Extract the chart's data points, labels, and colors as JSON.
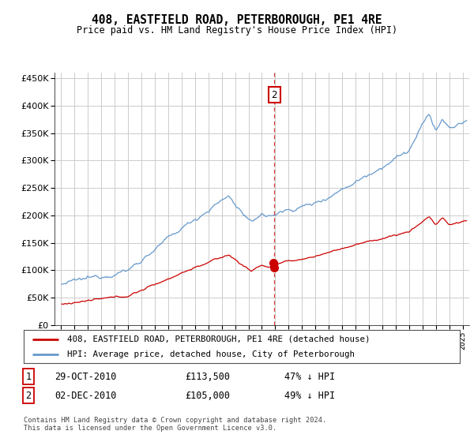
{
  "title": "408, EASTFIELD ROAD, PETERBOROUGH, PE1 4RE",
  "subtitle": "Price paid vs. HM Land Registry's House Price Index (HPI)",
  "legend_line1": "408, EASTFIELD ROAD, PETERBOROUGH, PE1 4RE (detached house)",
  "legend_line2": "HPI: Average price, detached house, City of Peterborough",
  "transaction1_date": "29-OCT-2010",
  "transaction1_price": "£113,500",
  "transaction1_note": "47% ↓ HPI",
  "transaction2_date": "02-DEC-2010",
  "transaction2_price": "£105,000",
  "transaction2_note": "49% ↓ HPI",
  "footer": "Contains HM Land Registry data © Crown copyright and database right 2024.\nThis data is licensed under the Open Government Licence v3.0.",
  "hpi_color": "#6699cc",
  "price_color": "#cc0000",
  "vline_color": "#cc0000",
  "background_color": "#ffffff",
  "grid_color": "#cccccc",
  "annotation_box_color": "#cc0000",
  "ylim": [
    0,
    460000
  ],
  "yticks": [
    0,
    50000,
    100000,
    150000,
    200000,
    250000,
    300000,
    350000,
    400000,
    450000
  ],
  "transaction1_decimal": 2010.83,
  "transaction2_decimal": 2010.92,
  "transaction1_price_val": 113500,
  "transaction2_price_val": 105000
}
